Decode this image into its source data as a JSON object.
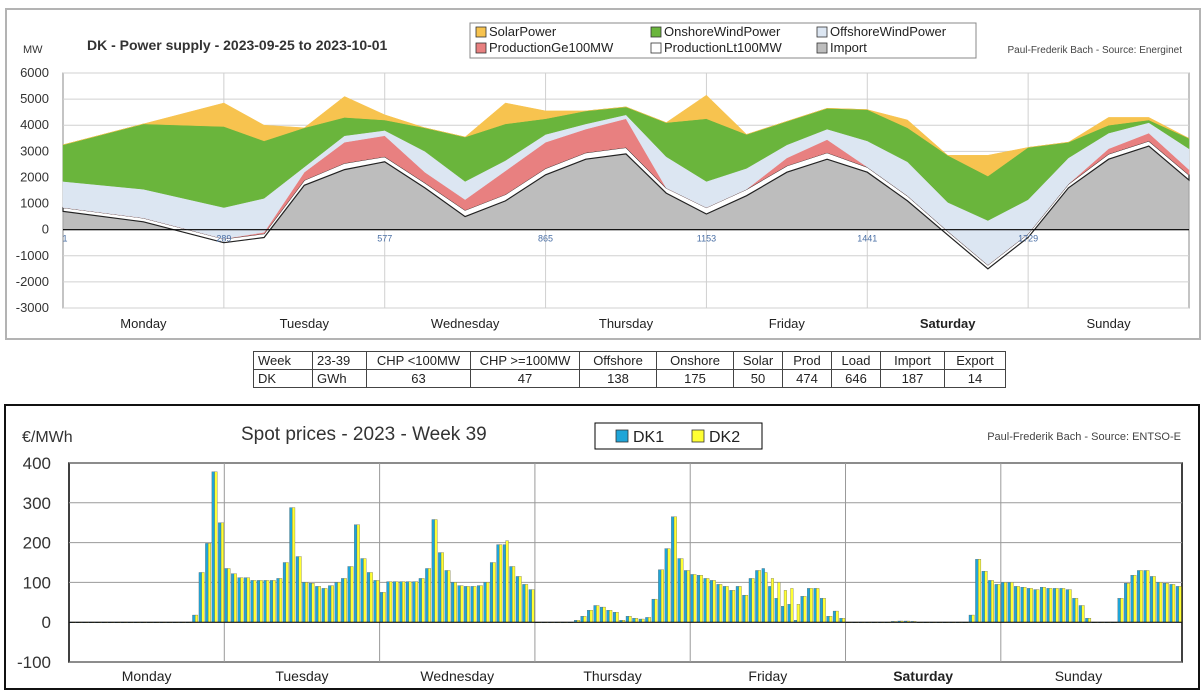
{
  "chart_data": [
    {
      "type": "area",
      "title": "DK - Power supply - 2023-09-25 to 2023-10-01",
      "credit": "Paul-Frederik Bach - Source: Energinet",
      "ylabel": "MW",
      "ylim": [
        -3000,
        6000
      ],
      "yticks": [
        "6000",
        "5000",
        "4000",
        "3000",
        "2000",
        "1000",
        "0",
        "-1000",
        "-2000",
        "-3000"
      ],
      "grid": true,
      "legend_position": "top-center",
      "xticks": [
        "1",
        "289",
        "577",
        "865",
        "1153",
        "1441",
        "1729"
      ],
      "day_labels": [
        "Monday",
        "Tuesday",
        "Wednesday",
        "Thursday",
        "Friday",
        "Saturday",
        "Sunday"
      ],
      "x": [
        0,
        12,
        24,
        30,
        36,
        42,
        48,
        54,
        60,
        66,
        72,
        78,
        84,
        90,
        96,
        102,
        108,
        114,
        120,
        126,
        132,
        138,
        144,
        150,
        156,
        162,
        168
      ],
      "series": [
        {
          "name": "Import",
          "color": "#bdbdbd",
          "values": [
            700,
            300,
            -500,
            -300,
            1700,
            2300,
            2600,
            1600,
            500,
            1100,
            2100,
            2700,
            2900,
            1400,
            600,
            1300,
            2200,
            2700,
            2200,
            1100,
            -200,
            -1500,
            -300,
            1600,
            2700,
            3200,
            1900
          ]
        },
        {
          "name": "ProductionLt100MW",
          "color": "#ffffff",
          "stroke": "#222222",
          "values": [
            150,
            150,
            150,
            150,
            200,
            250,
            200,
            200,
            250,
            250,
            250,
            250,
            250,
            200,
            250,
            250,
            250,
            250,
            200,
            200,
            150,
            150,
            150,
            150,
            200,
            200,
            200
          ]
        },
        {
          "name": "ProductionGe100MW",
          "color": "#e88080",
          "values": [
            0,
            0,
            0,
            50,
            300,
            800,
            800,
            400,
            400,
            900,
            1000,
            900,
            1100,
            0,
            0,
            0,
            300,
            500,
            0,
            0,
            0,
            0,
            0,
            0,
            200,
            300,
            200
          ]
        },
        {
          "name": "OffshoreWindPower",
          "color": "#dce6f2",
          "values": [
            1000,
            1100,
            1200,
            1300,
            200,
            250,
            200,
            800,
            700,
            400,
            300,
            200,
            150,
            1200,
            1000,
            800,
            500,
            400,
            1000,
            1300,
            1100,
            1700,
            1300,
            1000,
            600,
            400,
            800
          ]
        },
        {
          "name": "OnshoreWindPower",
          "color": "#6ab53c",
          "values": [
            1400,
            2500,
            3100,
            2200,
            1500,
            700,
            400,
            900,
            1700,
            1400,
            600,
            500,
            300,
            1300,
            2400,
            1300,
            900,
            800,
            1200,
            1300,
            1800,
            1700,
            2000,
            600,
            300,
            100,
            400
          ]
        },
        {
          "name": "SolarPower",
          "color": "#f7c34f",
          "values": [
            0,
            0,
            900,
            600,
            0,
            800,
            200,
            0,
            0,
            800,
            300,
            0,
            0,
            0,
            900,
            0,
            0,
            0,
            0,
            300,
            0,
            800,
            0,
            0,
            300,
            100,
            0
          ]
        }
      ]
    },
    {
      "type": "bar",
      "title": "Spot prices - 2023 - Week 39",
      "credit": "Paul-Frederik Bach - Source: ENTSO-E",
      "ylabel": "€/MWh",
      "ylim": [
        -100,
        400
      ],
      "yticks": [
        "400",
        "300",
        "200",
        "100",
        "0",
        "-100"
      ],
      "grid": true,
      "legend_position": "top-center",
      "day_labels": [
        "Monday",
        "Tuesday",
        "Wednesday",
        "Thursday",
        "Friday",
        "Saturday",
        "Sunday"
      ],
      "series": [
        {
          "name": "DK1",
          "color": "#1fa5d8",
          "values": [
            0,
            0,
            0,
            0,
            0,
            0,
            0,
            0,
            0,
            0,
            0,
            0,
            0,
            0,
            0,
            0,
            0,
            0,
            0,
            18,
            125,
            198,
            378,
            250,
            135,
            122,
            112,
            112,
            105,
            105,
            105,
            105,
            110,
            150,
            288,
            165,
            100,
            98,
            90,
            85,
            92,
            100,
            110,
            140,
            245,
            160,
            125,
            105,
            75,
            102,
            102,
            102,
            102,
            102,
            110,
            135,
            258,
            175,
            130,
            100,
            92,
            90,
            90,
            92,
            100,
            150,
            195,
            195,
            140,
            115,
            95,
            82,
            0,
            0,
            0,
            0,
            0,
            0,
            5,
            15,
            30,
            42,
            38,
            30,
            25,
            5,
            15,
            10,
            8,
            12,
            58,
            132,
            185,
            265,
            160,
            130,
            120,
            118,
            110,
            105,
            95,
            90,
            80,
            90,
            68,
            110,
            130,
            135,
            90,
            60,
            40,
            45,
            5,
            65,
            85,
            85,
            60,
            15,
            28,
            10,
            0,
            0,
            0,
            0,
            0,
            0,
            0,
            2,
            3,
            3,
            2,
            0,
            0,
            0,
            0,
            0,
            0,
            0,
            0,
            18,
            158,
            128,
            105,
            95,
            100,
            100,
            90,
            88,
            85,
            82,
            88,
            85,
            85,
            85,
            82,
            60,
            42,
            10,
            0,
            0,
            0,
            0,
            60,
            98,
            118,
            130,
            130,
            115,
            100,
            98,
            95,
            90
          ]
        },
        {
          "name": "DK2",
          "color": "#ffff33",
          "values": [
            0,
            0,
            0,
            0,
            0,
            0,
            0,
            0,
            0,
            0,
            0,
            0,
            0,
            0,
            0,
            0,
            0,
            0,
            0,
            18,
            125,
            198,
            378,
            250,
            135,
            122,
            112,
            112,
            105,
            105,
            105,
            105,
            110,
            150,
            288,
            165,
            100,
            98,
            90,
            85,
            92,
            100,
            110,
            140,
            245,
            160,
            125,
            105,
            75,
            102,
            102,
            102,
            102,
            102,
            110,
            135,
            258,
            175,
            130,
            100,
            92,
            90,
            90,
            92,
            100,
            150,
            195,
            205,
            140,
            115,
            95,
            82,
            0,
            0,
            0,
            0,
            0,
            0,
            5,
            15,
            30,
            42,
            38,
            30,
            25,
            5,
            15,
            10,
            8,
            12,
            58,
            132,
            185,
            265,
            160,
            130,
            120,
            118,
            110,
            105,
            95,
            90,
            80,
            90,
            68,
            110,
            130,
            125,
            110,
            100,
            80,
            85,
            45,
            65,
            85,
            85,
            60,
            15,
            28,
            10,
            0,
            0,
            0,
            0,
            0,
            0,
            0,
            2,
            3,
            3,
            2,
            0,
            0,
            0,
            0,
            0,
            0,
            0,
            0,
            18,
            158,
            128,
            105,
            95,
            100,
            100,
            90,
            88,
            85,
            82,
            88,
            85,
            85,
            85,
            82,
            60,
            42,
            10,
            0,
            0,
            0,
            0,
            60,
            98,
            118,
            130,
            130,
            115,
            100,
            98,
            95,
            90
          ]
        }
      ]
    }
  ],
  "table": {
    "header": [
      "Week",
      "23-39",
      "CHP <100MW",
      "CHP >=100MW",
      "Offshore",
      "Onshore",
      "Solar",
      "Prod",
      "Load",
      "Import",
      "Export"
    ],
    "row": [
      "DK",
      "GWh",
      "63",
      "47",
      "138",
      "175",
      "50",
      "474",
      "646",
      "187",
      "14"
    ]
  }
}
